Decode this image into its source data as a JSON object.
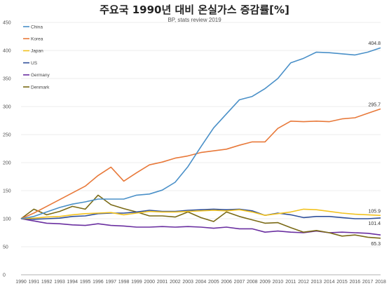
{
  "chart_data": {
    "type": "line",
    "title": "주요국 1990년 대비 온실가스 증감률[%]",
    "subtitle": "BP, stats review 2019",
    "xlabel": "",
    "ylabel": "",
    "ylim": [
      0,
      450
    ],
    "yticks": [
      "0",
      "50",
      "100",
      "150",
      "200",
      "250",
      "300",
      "350",
      "400",
      "450"
    ],
    "x": [
      "1990",
      "1991",
      "1992",
      "1993",
      "1994",
      "1995",
      "1996",
      "1997",
      "1998",
      "1999",
      "2000",
      "2001",
      "2002",
      "2003",
      "2004",
      "2005",
      "2006",
      "2007",
      "2008",
      "2009",
      "2010",
      "2011",
      "2012",
      "2013",
      "2014",
      "2015",
      "2016",
      "2017",
      "2018"
    ],
    "grid": "horizontal",
    "legend_position": "top-left",
    "series": [
      {
        "name": "China",
        "color": "#4a90c8",
        "end_label": "404.8",
        "values": [
          100,
          104,
          112,
          120,
          126,
          130,
          135,
          135,
          135,
          142,
          144,
          151,
          165,
          193,
          228,
          262,
          287,
          312,
          318,
          332,
          350,
          378,
          386,
          397,
          396,
          394,
          392,
          397,
          404.8
        ]
      },
      {
        "name": "Korea",
        "color": "#e8793a",
        "end_label": "295.7",
        "values": [
          100,
          110,
          122,
          134,
          146,
          158,
          177,
          192,
          167,
          182,
          196,
          201,
          208,
          212,
          218,
          221,
          224,
          231,
          237,
          237,
          261,
          274,
          273,
          274,
          273,
          278,
          280,
          288,
          295.7
        ]
      },
      {
        "name": "Japan",
        "color": "#f2c21f",
        "end_label": "105.9",
        "values": [
          100,
          101,
          103,
          104,
          107,
          109,
          110,
          111,
          107,
          110,
          113,
          112,
          112,
          113,
          114,
          115,
          114,
          116,
          112,
          106,
          109,
          112,
          117,
          116,
          113,
          110,
          108,
          107,
          105.9
        ]
      },
      {
        "name": "US",
        "color": "#2f4f9a",
        "end_label": "101.4",
        "values": [
          100,
          99,
          100,
          101,
          104,
          105,
          109,
          110,
          110,
          112,
          115,
          113,
          113,
          115,
          116,
          117,
          116,
          117,
          114,
          106,
          110,
          107,
          102,
          104,
          104,
          102,
          100,
          100,
          101.4
        ]
      },
      {
        "name": "Germany",
        "color": "#6a2fa0",
        "end_label": "",
        "values": [
          100,
          96,
          92,
          91,
          89,
          88,
          91,
          88,
          87,
          85,
          85,
          86,
          85,
          86,
          85,
          83,
          85,
          82,
          82,
          76,
          78,
          76,
          75,
          78,
          75,
          76,
          75,
          74,
          71
        ]
      },
      {
        "name": "Denmark",
        "color": "#7a6a16",
        "end_label": "65.3",
        "values": [
          100,
          117,
          107,
          113,
          122,
          117,
          142,
          125,
          118,
          112,
          105,
          105,
          103,
          112,
          102,
          95,
          112,
          104,
          98,
          92,
          93,
          84,
          76,
          79,
          75,
          69,
          71,
          67,
          65.3
        ]
      }
    ]
  }
}
